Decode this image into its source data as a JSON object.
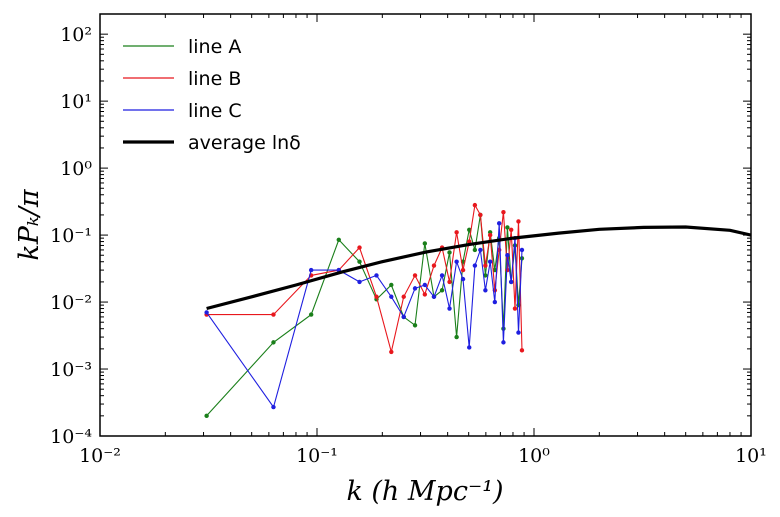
{
  "chart_data": {
    "type": "scatter",
    "xlabel": "k (h Mpc⁻¹)",
    "ylabel": "kPₖ/π",
    "xscale": "log",
    "yscale": "log",
    "xlim": [
      0.01,
      10
    ],
    "ylim": [
      0.0001,
      200
    ],
    "x_tick_labels": [
      "10⁻²",
      "10⁻¹",
      "10⁰",
      "10¹"
    ],
    "y_tick_labels": [
      "10⁻⁴",
      "10⁻³",
      "10⁻²",
      "10⁻¹",
      "10⁰",
      "10¹",
      "10²"
    ],
    "legend_position": "top-left",
    "grid": false,
    "series": [
      {
        "name": "line A",
        "color": "#1a7f1a",
        "style": "line-with-markers",
        "x": [
          0.031,
          0.063,
          0.094,
          0.126,
          0.157,
          0.188,
          0.22,
          0.251,
          0.283,
          0.314,
          0.346,
          0.377,
          0.408,
          0.44,
          0.471,
          0.503,
          0.534,
          0.566,
          0.597,
          0.628,
          0.66,
          0.691,
          0.723,
          0.754,
          0.785,
          0.817,
          0.848,
          0.88
        ],
        "y": [
          0.0002,
          0.0025,
          0.0065,
          0.085,
          0.04,
          0.011,
          0.018,
          0.006,
          0.0045,
          0.075,
          0.012,
          0.015,
          0.055,
          0.003,
          0.04,
          0.12,
          0.06,
          0.2,
          0.025,
          0.11,
          0.03,
          0.09,
          0.004,
          0.13,
          0.02,
          0.07,
          0.009,
          0.045
        ]
      },
      {
        "name": "line B",
        "color": "#e8171d",
        "style": "line-with-markers",
        "x": [
          0.031,
          0.063,
          0.094,
          0.126,
          0.157,
          0.188,
          0.22,
          0.251,
          0.283,
          0.314,
          0.346,
          0.377,
          0.408,
          0.44,
          0.471,
          0.503,
          0.534,
          0.566,
          0.597,
          0.628,
          0.66,
          0.691,
          0.723,
          0.754,
          0.785,
          0.817,
          0.848,
          0.88
        ],
        "y": [
          0.0065,
          0.0065,
          0.025,
          0.03,
          0.065,
          0.012,
          0.0018,
          0.012,
          0.025,
          0.013,
          0.035,
          0.065,
          0.02,
          0.11,
          0.03,
          0.08,
          0.28,
          0.2,
          0.035,
          0.1,
          0.015,
          0.06,
          0.22,
          0.03,
          0.12,
          0.008,
          0.16,
          0.0019
        ]
      },
      {
        "name": "line C",
        "color": "#1f1fe0",
        "style": "line-with-markers",
        "x": [
          0.031,
          0.063,
          0.094,
          0.126,
          0.157,
          0.188,
          0.22,
          0.251,
          0.283,
          0.314,
          0.346,
          0.377,
          0.408,
          0.44,
          0.471,
          0.503,
          0.534,
          0.566,
          0.597,
          0.628,
          0.66,
          0.691,
          0.723,
          0.754,
          0.785,
          0.817,
          0.848,
          0.88
        ],
        "y": [
          0.007,
          0.00027,
          0.03,
          0.03,
          0.02,
          0.025,
          0.012,
          0.006,
          0.016,
          0.018,
          0.012,
          0.025,
          0.008,
          0.04,
          0.022,
          0.0021,
          0.035,
          0.06,
          0.015,
          0.04,
          0.01,
          0.15,
          0.0025,
          0.05,
          0.02,
          0.09,
          0.0035,
          0.06
        ]
      },
      {
        "name": "average lnδ",
        "color": "#000000",
        "style": "thick-line",
        "x": [
          0.031,
          0.05,
          0.08,
          0.13,
          0.2,
          0.32,
          0.5,
          0.8,
          1.3,
          2,
          3.2,
          5,
          8,
          10
        ],
        "y": [
          0.008,
          0.012,
          0.018,
          0.028,
          0.04,
          0.056,
          0.072,
          0.09,
          0.107,
          0.122,
          0.13,
          0.132,
          0.118,
          0.1
        ]
      }
    ]
  },
  "legend": [
    {
      "label": "line A",
      "color": "#1a7f1a"
    },
    {
      "label": "line B",
      "color": "#e8171d"
    },
    {
      "label": "line C",
      "color": "#1f1fe0"
    },
    {
      "label": "average lnδ",
      "color": "#000000"
    }
  ]
}
